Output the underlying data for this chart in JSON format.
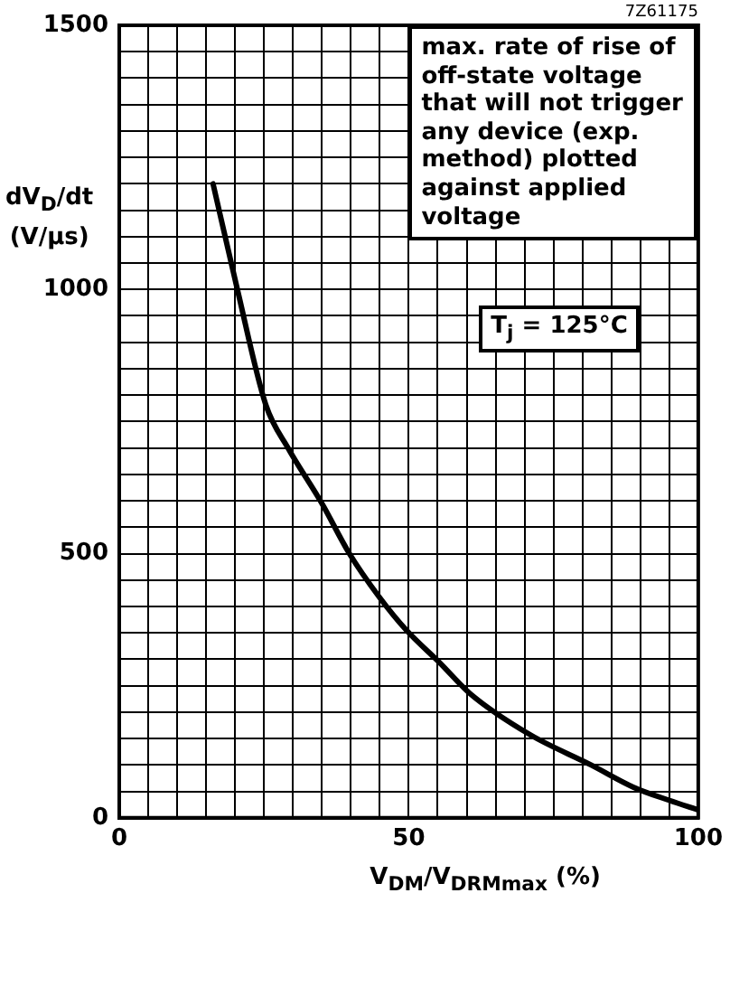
{
  "chart_data": {
    "type": "line",
    "ylabel": "dV$_{D}$/dt (V/µs)",
    "xlabel": "V$_{DM}$/V$_{DRMmax}$ (%)",
    "annotations": [
      "7Z61175",
      "max. rate of rise of off-state voltage that will not trigger any device (exp. method) plotted against applied voltage",
      "T$_{j}$ = 125°C"
    ],
    "x": [
      16.2,
      20.4,
      25.3,
      29.2,
      35,
      39.7,
      44.9,
      49.6,
      55.4,
      60.6,
      71,
      81.5,
      88.8,
      95,
      100
    ],
    "series": [
      {
        "color": "#000000",
        "values": [
          1200,
          1000,
          782,
          699,
          595,
          501,
          418,
          355,
          293,
          235,
          157,
          100,
          58,
          33,
          15
        ]
      }
    ],
    "xlim": [
      0,
      100
    ],
    "xticks": [
      0,
      {
        "value": 5,
        "label": null
      },
      {
        "value": 10,
        "label": null
      },
      {
        "value": 15,
        "label": null
      },
      {
        "value": 20,
        "label": null
      },
      {
        "value": 25,
        "label": null
      },
      {
        "value": 30,
        "label": null
      },
      {
        "value": 35,
        "label": null
      },
      {
        "value": 40,
        "label": null
      },
      {
        "value": 45,
        "label": null
      },
      50,
      {
        "value": 55,
        "label": null
      },
      {
        "value": 60,
        "label": null
      },
      {
        "value": 65,
        "label": null
      },
      {
        "value": 70,
        "label": null
      },
      {
        "value": 75,
        "label": null
      },
      {
        "value": 80,
        "label": null
      },
      {
        "value": 85,
        "label": null
      },
      {
        "value": 90,
        "label": null
      },
      {
        "value": 95,
        "label": null
      },
      100
    ],
    "ylim": [
      0,
      1500
    ],
    "yticks": [
      0,
      {
        "value": 50,
        "label": null
      },
      {
        "value": 100,
        "label": null
      },
      {
        "value": 150,
        "label": null
      },
      {
        "value": 200,
        "label": null
      },
      {
        "value": 250,
        "label": null
      },
      {
        "value": 300,
        "label": null
      },
      {
        "value": 350,
        "label": null
      },
      {
        "value": 400,
        "label": null
      },
      {
        "value": 450,
        "label": null
      },
      500,
      {
        "value": 550,
        "label": null
      },
      {
        "value": 600,
        "label": null
      },
      {
        "value": 650,
        "label": null
      },
      {
        "value": 700,
        "label": null
      },
      {
        "value": 750,
        "label": null
      },
      {
        "value": 800,
        "label": null
      },
      {
        "value": 850,
        "label": null
      },
      {
        "value": 900,
        "label": null
      },
      {
        "value": 950,
        "label": null
      },
      1000,
      {
        "value": 1050,
        "label": null
      },
      {
        "value": 1100,
        "label": null
      },
      {
        "value": 1150,
        "label": null
      },
      {
        "value": 1200,
        "label": null
      },
      {
        "value": 1250,
        "label": null
      },
      {
        "value": 1300,
        "label": null
      },
      {
        "value": 1350,
        "label": null
      },
      {
        "value": 1400,
        "label": null
      },
      {
        "value": 1450,
        "label": null
      },
      1500
    ],
    "grid": true,
    "legend": false,
    "marker": "none",
    "line_style": "solid"
  }
}
